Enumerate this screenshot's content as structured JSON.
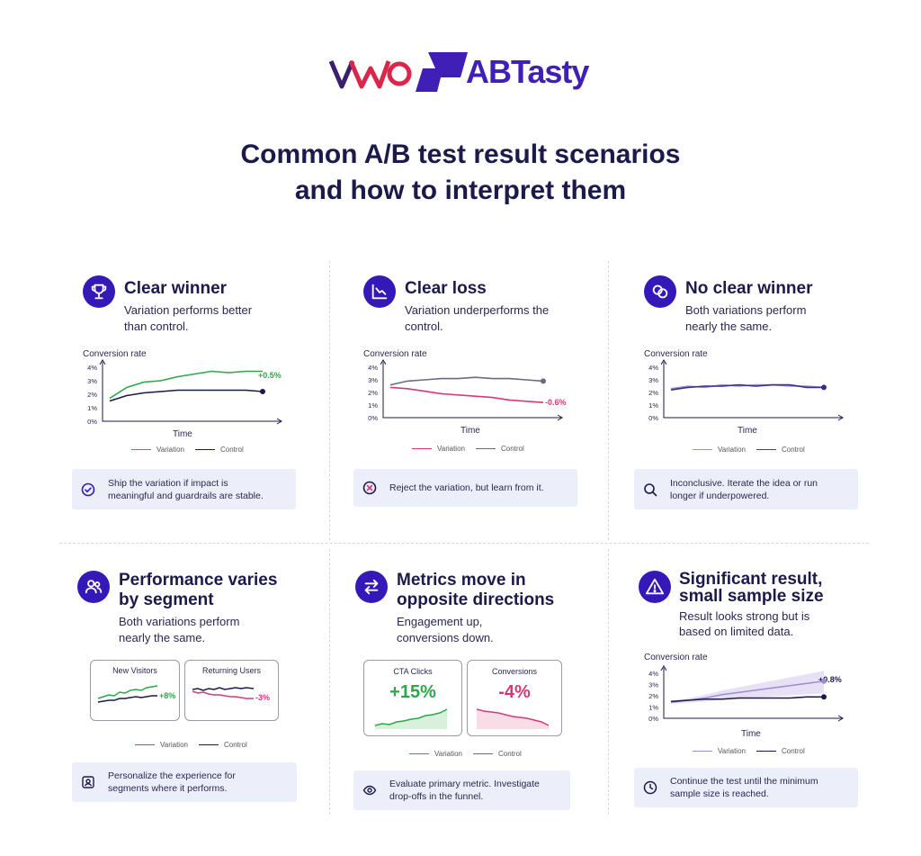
{
  "brand": {
    "vwo": "VWO",
    "abtasty": "ABTasty"
  },
  "title": {
    "line1": "Common A/B test result scenarios",
    "line2": "and how to interpret them"
  },
  "colors": {
    "brand_purple": "#3518b8",
    "variation_green": "#2aa84a",
    "variation_pink": "#d6397a",
    "control_navy": "#1c1a4a",
    "variation_lavender": "#9b8fd0",
    "note_bg": "#eceef9"
  },
  "scenarios": [
    {
      "icon": "trophy-icon",
      "title": "Clear winner",
      "subtitle_1": "Variation performs better",
      "subtitle_2": "than control.",
      "chart_title": "Conversion rate",
      "xlabel": "Time",
      "delta": "+0.5%",
      "legend_variation": "Variation",
      "legend_control": "Control",
      "note_icon": "check-circle-icon",
      "note_1": "Ship the variation if impact is",
      "note_2": "meaningful and guardrails are stable."
    },
    {
      "icon": "chart-down-icon",
      "title": "Clear loss",
      "subtitle_1": "Variation underperforms the",
      "subtitle_2": "control.",
      "chart_title": "Conversion rate",
      "xlabel": "Time",
      "delta": "-0.6%",
      "legend_variation": "Variation",
      "legend_control": "Control",
      "note_icon": "x-circle-icon",
      "note_1": "Reject the variation, but learn from it.",
      "note_2": ""
    },
    {
      "icon": "overlap-circles-icon",
      "title": "No clear winner",
      "subtitle_1": "Both variations perform",
      "subtitle_2": "nearly the same.",
      "chart_title": "Conversion rate",
      "xlabel": "Time",
      "legend_variation": "Variation",
      "legend_control": "Control",
      "note_icon": "magnifier-icon",
      "note_1": "Inconclusive. Iterate the idea or run",
      "note_2": "longer if underpowered."
    },
    {
      "icon": "users-icon",
      "title_1": "Performance varies",
      "title_2": "by segment",
      "subtitle_1": "Both variations perform",
      "subtitle_2": "nearly the same.",
      "segments": [
        {
          "label": "New Visitors",
          "delta": "+8%"
        },
        {
          "label": "Returning Users",
          "delta": "-3%"
        }
      ],
      "legend_variation": "Variation",
      "legend_control": "Control",
      "note_icon": "person-card-icon",
      "note_1": "Personalize the experience for",
      "note_2": "segments where it performs."
    },
    {
      "icon": "arrows-swap-icon",
      "title_1": "Metrics move in",
      "title_2": "opposite directions",
      "subtitle_1": "Engagement up,",
      "subtitle_2": "conversions down.",
      "metrics": [
        {
          "label": "CTA Clicks",
          "value": "+15%"
        },
        {
          "label": "Conversions",
          "value": "-4%"
        }
      ],
      "legend_variation": "Variation",
      "legend_control": "Control",
      "note_icon": "eye-icon",
      "note_1": "Evaluate primary metric. Investigate",
      "note_2": "drop-offs in the funnel."
    },
    {
      "icon": "warning-icon",
      "title_1": "Significant result,",
      "title_2": "small sample size",
      "subtitle_1": "Result looks strong but is",
      "subtitle_2": "based on limited data.",
      "chart_title": "Conversion rate",
      "xlabel": "Time",
      "delta": "+0.8%",
      "legend_variation": "Variation",
      "legend_control": "Control",
      "note_icon": "clock-icon",
      "note_1": "Continue the test until the minimum",
      "note_2": "sample size is reached."
    }
  ],
  "chart_data": [
    {
      "type": "line",
      "x": [
        1,
        2,
        3,
        4,
        5,
        6,
        7,
        8,
        9,
        10
      ],
      "series": [
        {
          "name": "Variation",
          "values": [
            1.7,
            2.5,
            2.9,
            3.0,
            3.3,
            3.5,
            3.7,
            3.6,
            3.7,
            3.7
          ]
        },
        {
          "name": "Control",
          "values": [
            1.5,
            1.9,
            2.1,
            2.2,
            2.3,
            2.3,
            2.3,
            2.3,
            2.3,
            2.2
          ]
        }
      ],
      "yticks": [
        "0%",
        "1%",
        "2%",
        "3%",
        "4%"
      ],
      "ylim": [
        0,
        4
      ],
      "title": "Conversion rate",
      "xlabel": "Time",
      "ylabel": ""
    },
    {
      "type": "line",
      "x": [
        1,
        2,
        3,
        4,
        5,
        6,
        7,
        8,
        9,
        10
      ],
      "series": [
        {
          "name": "Variation",
          "values": [
            2.4,
            2.3,
            2.1,
            1.9,
            1.8,
            1.7,
            1.6,
            1.4,
            1.3,
            1.2
          ]
        },
        {
          "name": "Control",
          "values": [
            2.6,
            2.9,
            3.0,
            3.1,
            3.1,
            3.2,
            3.1,
            3.1,
            3.0,
            2.9
          ]
        }
      ],
      "yticks": [
        "0%",
        "1%",
        "2%",
        "3%",
        "4%"
      ],
      "ylim": [
        0,
        4
      ],
      "title": "Conversion rate",
      "xlabel": "Time",
      "ylabel": ""
    },
    {
      "type": "line",
      "x": [
        1,
        2,
        3,
        4,
        5,
        6,
        7,
        8,
        9,
        10
      ],
      "series": [
        {
          "name": "Variation",
          "values": [
            2.3,
            2.5,
            2.4,
            2.6,
            2.5,
            2.6,
            2.6,
            2.5,
            2.5,
            2.4
          ]
        },
        {
          "name": "Control",
          "values": [
            2.2,
            2.4,
            2.5,
            2.5,
            2.6,
            2.5,
            2.6,
            2.6,
            2.4,
            2.4
          ]
        }
      ],
      "yticks": [
        "0%",
        "1%",
        "2%",
        "3%",
        "4%"
      ],
      "ylim": [
        0,
        4
      ],
      "title": "Conversion rate",
      "xlabel": "Time",
      "ylabel": ""
    },
    {
      "type": "line",
      "x": [
        1,
        2,
        3,
        4,
        5,
        6,
        7,
        8,
        9,
        10
      ],
      "series": [
        {
          "name": "Variation",
          "values": [
            1.4,
            1.6,
            1.8,
            2.1,
            2.3,
            2.5,
            2.7,
            2.9,
            3.1,
            3.3
          ]
        },
        {
          "name": "Control",
          "values": [
            1.5,
            1.6,
            1.7,
            1.7,
            1.8,
            1.8,
            1.8,
            1.8,
            1.9,
            1.9
          ]
        }
      ],
      "yticks": [
        "0%",
        "1%",
        "2%",
        "3%",
        "4%"
      ],
      "ylim": [
        0,
        4
      ],
      "title": "Conversion rate",
      "xlabel": "Time",
      "ylabel": ""
    }
  ]
}
